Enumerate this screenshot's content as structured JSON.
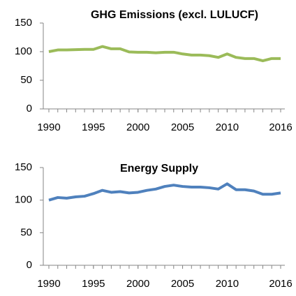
{
  "chart_data": [
    {
      "type": "line",
      "title": "GHG Emissions (excl. LULUCF)",
      "x": [
        1990,
        1991,
        1992,
        1993,
        1994,
        1995,
        1996,
        1997,
        1998,
        1999,
        2000,
        2001,
        2002,
        2003,
        2004,
        2005,
        2006,
        2007,
        2008,
        2009,
        2010,
        2011,
        2012,
        2013,
        2014,
        2015,
        2016
      ],
      "series": [
        {
          "name": "GHG Emissions (excl. LULUCF)",
          "color": "#9bbb59",
          "values": [
            100,
            103,
            103,
            103.5,
            104,
            104,
            109,
            105,
            105,
            99.5,
            99,
            99,
            98,
            99,
            99,
            96,
            94,
            94,
            93,
            90,
            96,
            90,
            88,
            88,
            84,
            88,
            88
          ]
        }
      ],
      "xlim": [
        1990,
        2016
      ],
      "xticks": [
        1990,
        1995,
        2000,
        2005,
        2010,
        2016
      ],
      "ylim": [
        0,
        150
      ],
      "yticks": [
        0,
        50,
        100,
        150
      ],
      "grid": false
    },
    {
      "type": "line",
      "title": "Energy Supply",
      "x": [
        1990,
        1991,
        1992,
        1993,
        1994,
        1995,
        1996,
        1997,
        1998,
        1999,
        2000,
        2001,
        2002,
        2003,
        2004,
        2005,
        2006,
        2007,
        2008,
        2009,
        2010,
        2011,
        2012,
        2013,
        2014,
        2015,
        2016
      ],
      "series": [
        {
          "name": "Energy Supply",
          "color": "#4f81bd",
          "values": [
            100,
            104,
            103,
            105,
            106,
            110,
            115,
            112,
            113,
            111,
            112,
            115,
            117,
            121,
            123,
            121,
            120,
            120,
            119,
            117,
            125,
            116,
            116,
            114,
            109,
            109,
            111
          ]
        }
      ],
      "xlim": [
        1990,
        2016
      ],
      "xticks": [
        1990,
        1995,
        2000,
        2005,
        2010,
        2016
      ],
      "ylim": [
        0,
        150
      ],
      "yticks": [
        0,
        50,
        100,
        150
      ],
      "grid": false
    }
  ]
}
